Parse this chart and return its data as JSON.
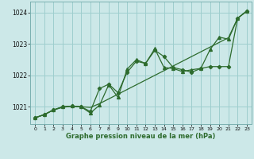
{
  "x": [
    0,
    1,
    2,
    3,
    4,
    5,
    6,
    7,
    8,
    9,
    10,
    11,
    12,
    13,
    14,
    15,
    16,
    17,
    18,
    19,
    20,
    21,
    22,
    23
  ],
  "line1_smooth": [
    1020.65,
    1020.75,
    1020.9,
    1020.98,
    1021.02,
    1021.0,
    1020.98,
    1021.1,
    1021.25,
    1021.4,
    1021.55,
    1021.7,
    1021.85,
    1022.0,
    1022.15,
    1022.3,
    1022.45,
    1022.6,
    1022.75,
    1022.9,
    1023.05,
    1023.2,
    1023.82,
    1024.05
  ],
  "line2_diamond": [
    1020.65,
    1020.75,
    1020.9,
    1021.0,
    1021.02,
    1021.0,
    1020.85,
    1021.58,
    1021.72,
    1021.45,
    1022.1,
    1022.45,
    1022.38,
    1022.8,
    1022.6,
    1022.25,
    1022.18,
    1022.1,
    1022.22,
    1022.28,
    1022.28,
    1022.28,
    1023.82,
    1024.05
  ],
  "line3_triangle": [
    1020.65,
    1020.75,
    1020.9,
    1021.0,
    1021.02,
    1021.0,
    1020.8,
    1021.05,
    1021.7,
    1021.3,
    1022.2,
    1022.5,
    1022.38,
    1022.85,
    1022.25,
    1022.22,
    1022.12,
    1022.18,
    1022.22,
    1022.82,
    1023.22,
    1023.15,
    1023.82,
    1024.05
  ],
  "bg_color": "#cce8e8",
  "line_color": "#2d6b2d",
  "grid_color": "#9ecece",
  "xlabel": "Graphe pression niveau de la mer (hPa)",
  "xlim": [
    -0.5,
    23.5
  ],
  "ylim": [
    1020.45,
    1024.35
  ],
  "yticks": [
    1021,
    1022,
    1023,
    1024
  ],
  "xticks": [
    0,
    1,
    2,
    3,
    4,
    5,
    6,
    7,
    8,
    9,
    10,
    11,
    12,
    13,
    14,
    15,
    16,
    17,
    18,
    19,
    20,
    21,
    22,
    23
  ]
}
